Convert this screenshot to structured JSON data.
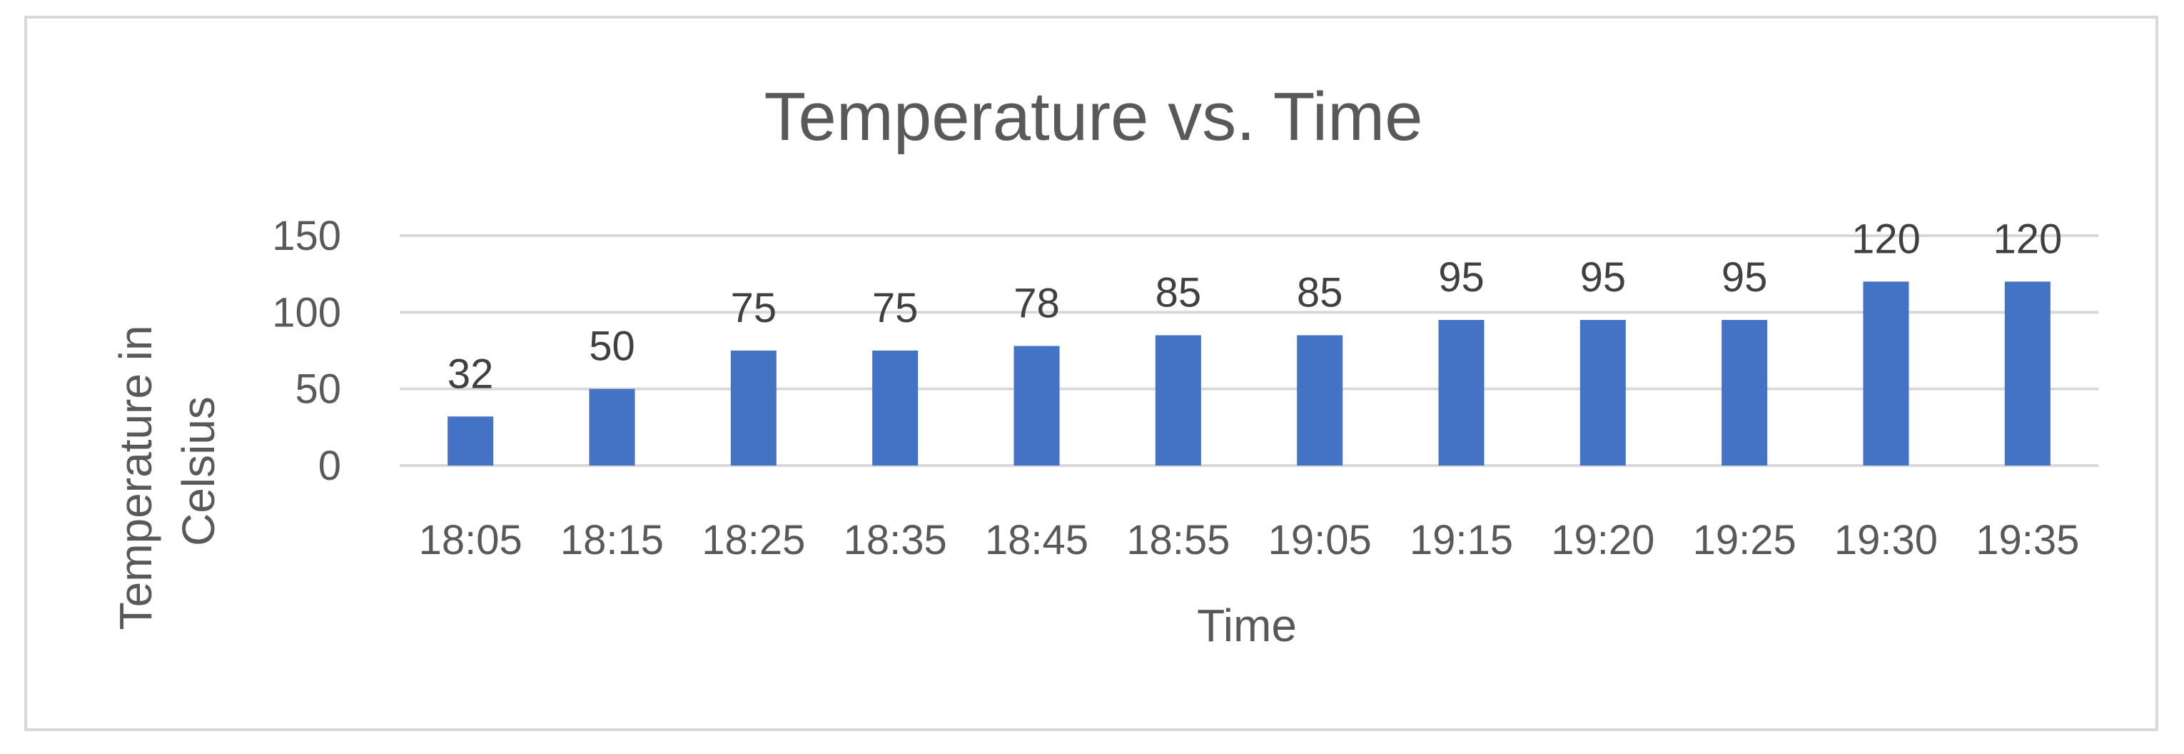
{
  "chart_data": {
    "type": "bar",
    "title": "Temperature vs. Time",
    "xlabel": "Time",
    "ylabel": [
      "Temperature in",
      "Celsius"
    ],
    "categories": [
      "18:05",
      "18:15",
      "18:25",
      "18:35",
      "18:45",
      "18:55",
      "19:05",
      "19:15",
      "19:20",
      "19:25",
      "19:30",
      "19:35"
    ],
    "values": [
      32,
      50,
      75,
      75,
      78,
      85,
      85,
      95,
      95,
      95,
      120,
      120
    ],
    "ylim": [
      0,
      150
    ],
    "yticks": [
      0,
      50,
      100,
      150
    ],
    "grid": true,
    "legend": "none",
    "data_labels": true,
    "colors": {
      "bar": "#4472c4",
      "grid": "#d9d9d9",
      "text": "#595959",
      "label": "#404040"
    }
  }
}
